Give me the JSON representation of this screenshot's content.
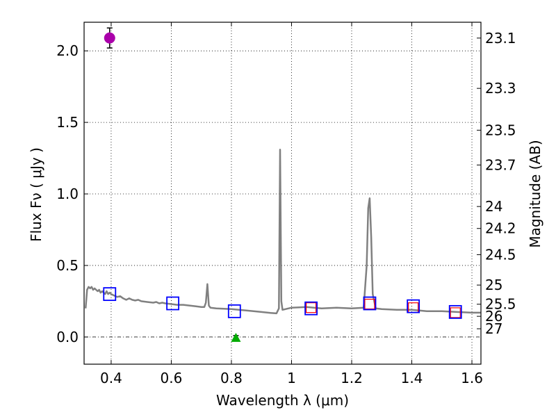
{
  "chart_data": {
    "type": "line",
    "xlabel": "Wavelength  λ (μm)",
    "ylabel": "Flux  Fν  ( μJy )",
    "y2label": "Magnitude (AB)",
    "xlim": [
      0.31,
      1.63
    ],
    "ylim": [
      -0.19,
      2.2
    ],
    "grid": true,
    "colors": {
      "spectrum": "#808080",
      "photometry_box": "#0000ff",
      "model_box": "#ff0000",
      "special_point": "#aa00aa",
      "triangle": "#00aa00"
    },
    "x_ticks": [
      {
        "value": 0.4,
        "label": "0.4"
      },
      {
        "value": 0.6,
        "label": "0.6"
      },
      {
        "value": 0.8,
        "label": "0.8"
      },
      {
        "value": 1.0,
        "label": "1"
      },
      {
        "value": 1.2,
        "label": "1.2"
      },
      {
        "value": 1.4,
        "label": "1.4"
      },
      {
        "value": 1.6,
        "label": "1.6"
      }
    ],
    "y_ticks": [
      {
        "value": 0.0,
        "label": "0.0"
      },
      {
        "value": 0.5,
        "label": "0.5"
      },
      {
        "value": 1.0,
        "label": "1.0"
      },
      {
        "value": 1.5,
        "label": "1.5"
      },
      {
        "value": 2.0,
        "label": "2.0"
      }
    ],
    "mag_ticks": [
      "23.1",
      "23.3",
      "23.5",
      "23.7",
      "24",
      "24.2",
      "24.5",
      "25",
      "25.5",
      "26",
      "27"
    ],
    "spectrum": {
      "x": [
        0.315,
        0.32,
        0.325,
        0.33,
        0.335,
        0.34,
        0.345,
        0.35,
        0.355,
        0.36,
        0.365,
        0.37,
        0.375,
        0.38,
        0.385,
        0.39,
        0.395,
        0.4,
        0.41,
        0.42,
        0.43,
        0.44,
        0.45,
        0.46,
        0.47,
        0.48,
        0.49,
        0.5,
        0.52,
        0.54,
        0.55,
        0.56,
        0.57,
        0.58,
        0.6,
        0.62,
        0.64,
        0.66,
        0.68,
        0.7,
        0.71,
        0.715,
        0.72,
        0.725,
        0.73,
        0.75,
        0.8,
        0.85,
        0.9,
        0.93,
        0.95,
        0.958,
        0.962,
        0.966,
        0.97,
        1.0,
        1.05,
        1.1,
        1.15,
        1.2,
        1.24,
        1.25,
        1.255,
        1.26,
        1.265,
        1.27,
        1.28,
        1.3,
        1.35,
        1.4,
        1.45,
        1.5,
        1.55,
        1.6,
        1.63
      ],
      "y": [
        0.2,
        0.33,
        0.35,
        0.34,
        0.35,
        0.33,
        0.34,
        0.33,
        0.32,
        0.33,
        0.31,
        0.32,
        0.31,
        0.3,
        0.32,
        0.3,
        0.31,
        0.3,
        0.29,
        0.28,
        0.285,
        0.27,
        0.26,
        0.27,
        0.26,
        0.255,
        0.26,
        0.25,
        0.245,
        0.24,
        0.245,
        0.235,
        0.24,
        0.235,
        0.23,
        0.225,
        0.225,
        0.22,
        0.215,
        0.21,
        0.21,
        0.24,
        0.37,
        0.22,
        0.205,
        0.2,
        0.195,
        0.185,
        0.175,
        0.168,
        0.165,
        0.2,
        1.31,
        0.25,
        0.19,
        0.205,
        0.21,
        0.2,
        0.205,
        0.2,
        0.205,
        0.5,
        0.9,
        0.97,
        0.7,
        0.3,
        0.2,
        0.195,
        0.19,
        0.19,
        0.18,
        0.18,
        0.175,
        0.17,
        0.17
      ]
    },
    "photometry": [
      {
        "x": 0.395,
        "y": 0.3
      },
      {
        "x": 0.605,
        "y": 0.235
      },
      {
        "x": 0.81,
        "y": 0.18
      },
      {
        "x": 1.065,
        "y": 0.2
      },
      {
        "x": 1.26,
        "y": 0.235
      },
      {
        "x": 1.405,
        "y": 0.215
      },
      {
        "x": 1.545,
        "y": 0.175
      }
    ],
    "model_points": [
      {
        "x": 1.065,
        "y": 0.205
      },
      {
        "x": 1.26,
        "y": 0.23
      },
      {
        "x": 1.405,
        "y": 0.205
      },
      {
        "x": 1.545,
        "y": 0.17
      }
    ],
    "special_point": {
      "x": 0.395,
      "y": 2.09,
      "err": 0.07
    },
    "triangle_point": {
      "x": 0.815,
      "y": -0.005,
      "err": 0.015
    }
  }
}
